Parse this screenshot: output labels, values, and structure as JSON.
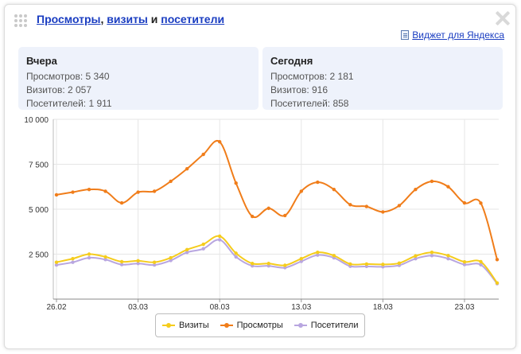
{
  "header": {
    "title_link_1": "Просмотры",
    "title_sep_1": ", ",
    "title_link_2": "визиты",
    "title_sep_2": " и ",
    "title_link_3": "посетители",
    "yandex_link": "Виджет для Яндекса"
  },
  "stats": {
    "left": {
      "heading": "Вчера",
      "lines": [
        "Просмотров: 5 340",
        "Визитов: 2 057",
        "Посетителей: 1 911"
      ]
    },
    "right": {
      "heading": "Сегодня",
      "lines": [
        "Просмотров: 2 181",
        "Визитов: 916",
        "Посетителей: 858"
      ]
    }
  },
  "colors": {
    "views": "#f07d1a",
    "visits": "#f5cc1c",
    "visitors": "#b8a6e0",
    "highlight_date": "#cc2200",
    "grid": "#e6e6e6"
  },
  "chart_data": {
    "type": "line",
    "x": [
      "26.02",
      "27.02",
      "28.02",
      "01.03",
      "02.03",
      "03.03",
      "04.03",
      "05.03",
      "06.03",
      "07.03",
      "08.03",
      "09.03",
      "10.03",
      "11.03",
      "12.03",
      "13.03",
      "14.03",
      "15.03",
      "16.03",
      "17.03",
      "18.03",
      "19.03",
      "20.03",
      "21.03",
      "22.03",
      "23.03",
      "24.03",
      "25.03"
    ],
    "x_tick_labels": [
      "26.02",
      "03.03",
      "08.03",
      "13.03",
      "18.03",
      "23.03"
    ],
    "highlighted_tick": "08.03",
    "y_tick_labels": [
      "2 500",
      "5 000",
      "7 500",
      "10 000"
    ],
    "ylim": [
      0,
      10000
    ],
    "grid": true,
    "legend_position": "bottom",
    "series": [
      {
        "name": "Визиты",
        "color_key": "visits",
        "values": [
          2050,
          2250,
          2500,
          2350,
          2080,
          2130,
          2050,
          2300,
          2750,
          3050,
          3500,
          2550,
          1980,
          1980,
          1880,
          2250,
          2600,
          2420,
          1950,
          1950,
          1930,
          2000,
          2400,
          2600,
          2420,
          2070,
          2080,
          900
        ]
      },
      {
        "name": "Просмотры",
        "color_key": "views",
        "values": [
          5800,
          5950,
          6100,
          6000,
          5350,
          5950,
          6000,
          6550,
          7250,
          8050,
          8750,
          6450,
          4600,
          5050,
          4650,
          6000,
          6500,
          6100,
          5250,
          5150,
          4850,
          5200,
          6100,
          6550,
          6250,
          5350,
          5340,
          2200
        ]
      },
      {
        "name": "Посетители",
        "color_key": "visitors",
        "values": [
          1900,
          2050,
          2300,
          2200,
          1920,
          1980,
          1900,
          2150,
          2600,
          2800,
          3300,
          2350,
          1850,
          1850,
          1750,
          2100,
          2450,
          2300,
          1830,
          1820,
          1800,
          1880,
          2250,
          2420,
          2250,
          1920,
          1911,
          858
        ]
      }
    ],
    "legend": [
      "Визиты",
      "Просмотры",
      "Посетители"
    ]
  }
}
